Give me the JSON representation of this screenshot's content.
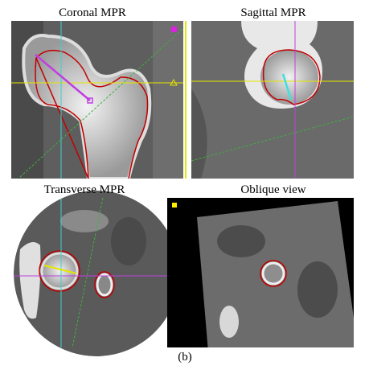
{
  "panels": [
    {
      "title": "Coronal MPR"
    },
    {
      "title": "Sagittal MPR"
    },
    {
      "title": "Transverse MPR"
    },
    {
      "title": "Oblique view"
    }
  ],
  "caption": "(b)"
}
